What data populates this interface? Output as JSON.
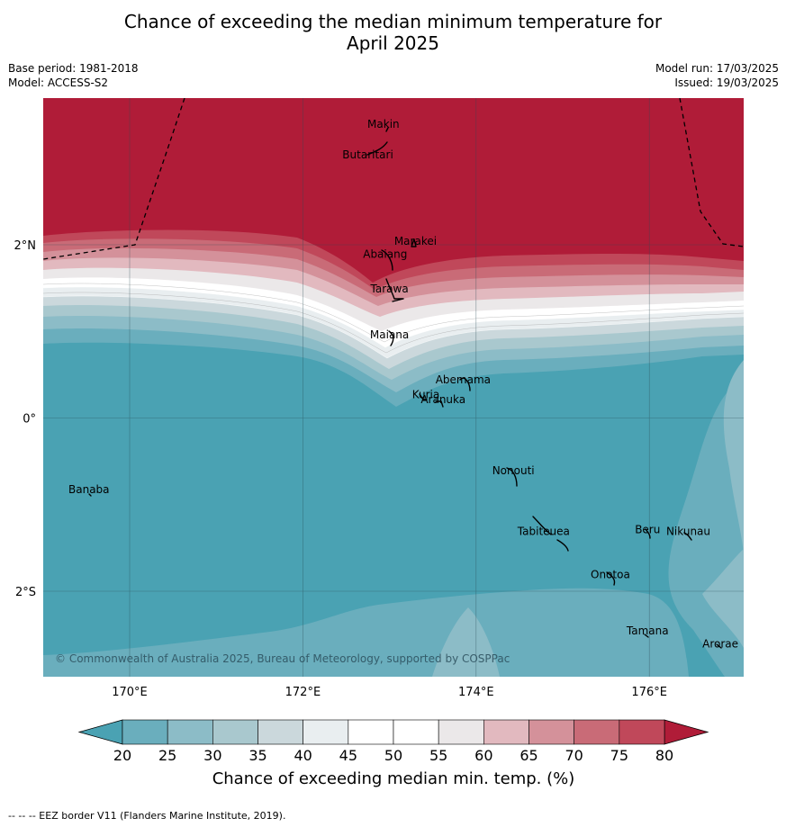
{
  "title_line1": "Chance of exceeding the median minimum temperature for",
  "title_line2": "April 2025",
  "base_period": "Base period: 1981-2018",
  "model": "Model: ACCESS-S2",
  "model_run": "Model run: 17/03/2025",
  "issued": "Issued: 19/03/2025",
  "copyright": "© Commonwealth of Australia 2025, Bureau of Meteorology, supported by COSPPac",
  "footnote": "--  --  -- EEZ border V11 (Flanders Marine Institute, 2019).",
  "map": {
    "x_ticks": [
      {
        "lon": 170,
        "label": "170°E"
      },
      {
        "lon": 172,
        "label": "172°E"
      },
      {
        "lon": 174,
        "label": "174°E"
      },
      {
        "lon": 176,
        "label": "176°E"
      }
    ],
    "y_ticks": [
      {
        "lat": 2,
        "label": "2°N"
      },
      {
        "lat": 0,
        "label": "0°"
      },
      {
        "lat": -2,
        "label": "2°S"
      }
    ],
    "places": [
      {
        "name": "Makin",
        "lon": 172.93,
        "lat": 3.35
      },
      {
        "name": "Butaritari",
        "lon": 172.75,
        "lat": 3.0
      },
      {
        "name": "Marakei",
        "lon": 173.3,
        "lat": 2.0
      },
      {
        "name": "Abaiang",
        "lon": 172.95,
        "lat": 1.85
      },
      {
        "name": "Tarawa",
        "lon": 173.0,
        "lat": 1.45
      },
      {
        "name": "Maiana",
        "lon": 173.0,
        "lat": 0.92
      },
      {
        "name": "Abemama",
        "lon": 173.85,
        "lat": 0.4
      },
      {
        "name": "Kuria",
        "lon": 173.42,
        "lat": 0.23
      },
      {
        "name": "Aranuka",
        "lon": 173.62,
        "lat": 0.17
      },
      {
        "name": "Nonouti",
        "lon": 174.43,
        "lat": -0.65
      },
      {
        "name": "Banaba",
        "lon": 169.53,
        "lat": -0.87
      },
      {
        "name": "Beru",
        "lon": 175.98,
        "lat": -1.33
      },
      {
        "name": "Nikunau",
        "lon": 176.45,
        "lat": -1.35
      },
      {
        "name": "Tabiteuea",
        "lon": 174.78,
        "lat": -1.35
      },
      {
        "name": "Onotoa",
        "lon": 175.55,
        "lat": -1.85
      },
      {
        "name": "Tamana",
        "lon": 175.98,
        "lat": -2.5
      },
      {
        "name": "Arorae",
        "lon": 176.82,
        "lat": -2.65
      }
    ]
  },
  "colorbar": {
    "label": "Chance of exceeding median min. temp. (%)",
    "ticks": [
      "20",
      "25",
      "30",
      "35",
      "40",
      "45",
      "50",
      "55",
      "60",
      "65",
      "70",
      "75",
      "80"
    ],
    "below_color": "#4aa2b3",
    "above_color": "#b01c38",
    "colors": [
      "#6aaebd",
      "#8cbcc7",
      "#a9c8ce",
      "#cbd8dc",
      "#e9eef0",
      "#ffffff",
      "#ffffff",
      "#ebe8e9",
      "#e2b9bf",
      "#d4919a",
      "#c96b77",
      "#c0485a"
    ]
  }
}
